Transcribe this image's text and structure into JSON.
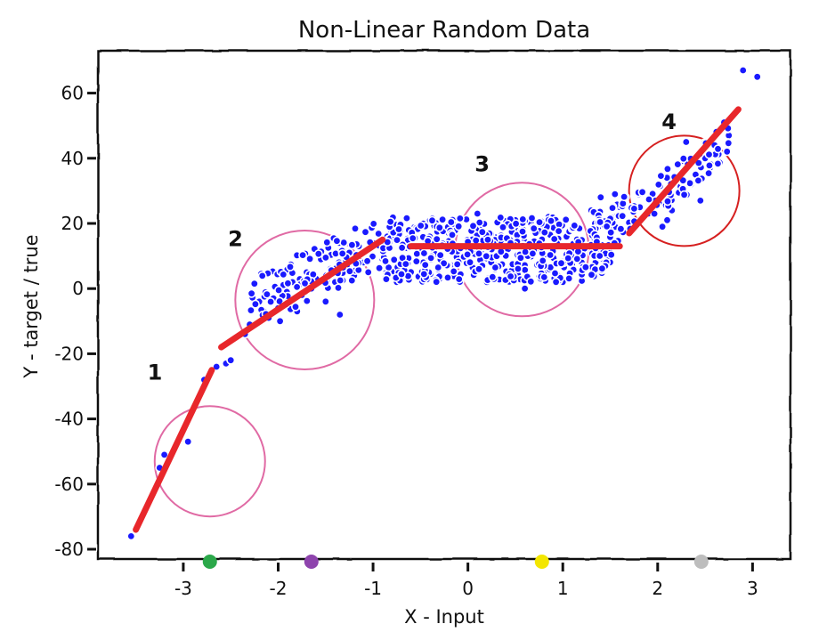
{
  "chart_data": {
    "type": "scatter",
    "title": "Non-Linear Random Data",
    "xlabel": "X - Input",
    "ylabel": "Y - target / true",
    "xlim": [
      -3.9,
      3.4
    ],
    "ylim": [
      -83,
      73
    ],
    "xticks": [
      -3,
      -2,
      -1,
      0,
      1,
      2,
      3
    ],
    "yticks": [
      -80,
      -60,
      -40,
      -20,
      0,
      20,
      40,
      60
    ],
    "grid": false,
    "legend": "none",
    "colors": {
      "points": "#1a1aff",
      "fit_lines": "#e8272b",
      "circle_outline": "#e06aa4",
      "circle_outline_4": "#d62020"
    },
    "series": [
      {
        "points": [
          [
            -3.55,
            -76
          ],
          [
            -3.25,
            -55
          ],
          [
            -3.2,
            -51
          ],
          [
            -2.95,
            -47
          ],
          [
            -2.78,
            -28
          ],
          [
            -2.65,
            -24
          ],
          [
            -2.55,
            -23
          ],
          [
            -2.5,
            -22
          ],
          [
            -2.35,
            -14
          ],
          [
            -2.3,
            -11
          ],
          [
            -2.25,
            1.5
          ],
          [
            -2.2,
            -4
          ],
          [
            -2.15,
            -7
          ],
          [
            -2.1,
            -9
          ],
          [
            -2.05,
            -3
          ],
          [
            -2.0,
            -6
          ],
          [
            -1.98,
            -10
          ],
          [
            -1.95,
            -1
          ],
          [
            -1.9,
            -4
          ],
          [
            -1.85,
            2
          ],
          [
            -1.8,
            -7
          ],
          [
            -1.75,
            -2
          ],
          [
            -1.7,
            5
          ],
          [
            -1.65,
            0
          ],
          [
            -1.6,
            3
          ],
          [
            -1.55,
            9
          ],
          [
            -1.5,
            -4
          ],
          [
            -1.45,
            6
          ],
          [
            -1.4,
            2
          ],
          [
            -1.35,
            -8
          ],
          [
            -1.3,
            8
          ],
          [
            -1.25,
            11
          ],
          [
            -1.2,
            4
          ],
          [
            -1.15,
            13
          ],
          [
            -1.1,
            8
          ],
          [
            -1.05,
            5
          ],
          [
            -1.0,
            14
          ],
          [
            -0.9,
            9
          ],
          [
            -0.85,
            16
          ],
          [
            -0.75,
            2
          ],
          [
            -0.6,
            18
          ],
          [
            -0.5,
            12
          ],
          [
            -0.4,
            21
          ],
          [
            -0.3,
            3
          ],
          [
            -0.2,
            17
          ],
          [
            -0.1,
            13
          ],
          [
            0.0,
            8
          ],
          [
            0.05,
            19
          ],
          [
            0.1,
            23
          ],
          [
            0.2,
            2
          ],
          [
            0.3,
            15
          ],
          [
            0.4,
            10
          ],
          [
            0.5,
            21
          ],
          [
            0.6,
            0
          ],
          [
            0.7,
            17
          ],
          [
            0.8,
            5
          ],
          [
            0.85,
            22
          ],
          [
            0.9,
            12
          ],
          [
            1.0,
            2
          ],
          [
            1.1,
            19
          ],
          [
            1.2,
            8
          ],
          [
            1.3,
            24
          ],
          [
            1.35,
            15
          ],
          [
            1.4,
            28
          ],
          [
            1.5,
            11
          ],
          [
            1.55,
            29
          ],
          [
            1.6,
            25
          ],
          [
            1.7,
            20
          ],
          [
            1.8,
            29
          ],
          [
            1.9,
            23
          ],
          [
            2.0,
            27
          ],
          [
            2.05,
            19
          ],
          [
            2.1,
            21
          ],
          [
            2.15,
            24
          ],
          [
            2.2,
            34
          ],
          [
            2.25,
            30
          ],
          [
            2.3,
            45
          ],
          [
            2.35,
            32
          ],
          [
            2.4,
            35
          ],
          [
            2.45,
            27
          ],
          [
            2.5,
            40
          ],
          [
            2.55,
            37
          ],
          [
            2.6,
            44
          ],
          [
            2.65,
            39
          ],
          [
            2.7,
            51
          ],
          [
            2.75,
            47
          ],
          [
            2.9,
            67
          ],
          [
            3.05,
            65
          ]
        ],
        "count": 899
      }
    ],
    "fit_segments": [
      {
        "label": "1",
        "x": [
          -3.5,
          -2.7
        ],
        "y": [
          -74,
          -25
        ]
      },
      {
        "label": "2",
        "x": [
          -2.6,
          -0.9
        ],
        "y": [
          -18,
          15
        ]
      },
      {
        "label": "3",
        "x": [
          -0.6,
          1.6
        ],
        "y": [
          13,
          13
        ]
      },
      {
        "label": "4",
        "x": [
          1.7,
          2.85
        ],
        "y": [
          17,
          55
        ]
      }
    ],
    "highlight_circles": [
      {
        "cx": -2.72,
        "cy": -53
      },
      {
        "cx": -1.72,
        "cy": -3.5
      },
      {
        "cx": 0.57,
        "cy": 12
      },
      {
        "cx": 2.28,
        "cy": 30
      }
    ],
    "axis_markers": [
      {
        "x": -2.72,
        "color": "#2ba84a"
      },
      {
        "x": -1.65,
        "color": "#8e44ad"
      },
      {
        "x": 0.78,
        "color": "#f3e600"
      },
      {
        "x": 2.46,
        "color": "#bdbdbd"
      }
    ]
  }
}
